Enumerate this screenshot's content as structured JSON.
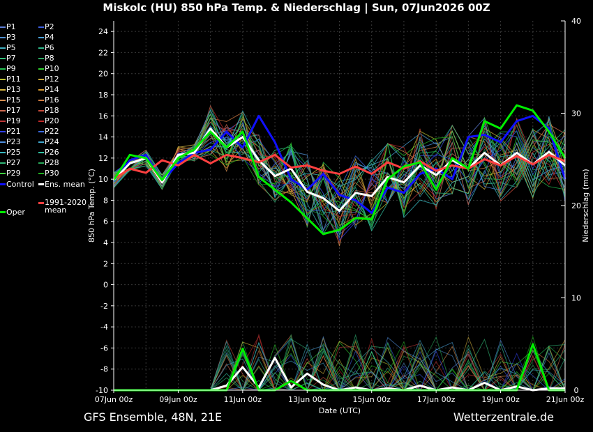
{
  "title": "Miskolc  (HU)  850 hPa Temp. & Niederschlag | Sun, 07Jun2026 00Z",
  "footer": {
    "left": "GFS Ensemble, 48N, 21E",
    "right": "Wetterzentrale.de"
  },
  "legend": [
    {
      "label": "P1",
      "color": "#5f7fd8"
    },
    {
      "label": "P2",
      "color": "#3b5fe0"
    },
    {
      "label": "P3",
      "color": "#4f8fd0"
    },
    {
      "label": "P4",
      "color": "#4aa0d8"
    },
    {
      "label": "P5",
      "color": "#3fb0c0"
    },
    {
      "label": "P6",
      "color": "#2fb88a"
    },
    {
      "label": "P7",
      "color": "#32c07a"
    },
    {
      "label": "P8",
      "color": "#2aa860"
    },
    {
      "label": "P9",
      "color": "#22c050"
    },
    {
      "label": "P10",
      "color": "#2ed02e"
    },
    {
      "label": "P11",
      "color": "#b8c030"
    },
    {
      "label": "P12",
      "color": "#c8a838"
    },
    {
      "label": "P13",
      "color": "#d8b840"
    },
    {
      "label": "P14",
      "color": "#d89a30"
    },
    {
      "label": "P15",
      "color": "#d89050"
    },
    {
      "label": "P16",
      "color": "#d07a40"
    },
    {
      "label": "P17",
      "color": "#d06a50"
    },
    {
      "label": "P18",
      "color": "#c84a3a"
    },
    {
      "label": "P19",
      "color": "#c03838"
    },
    {
      "label": "P20",
      "color": "#c02a2a"
    },
    {
      "label": "P21",
      "color": "#3040e8"
    },
    {
      "label": "P22",
      "color": "#3a6ae0"
    },
    {
      "label": "P23",
      "color": "#5090e0"
    },
    {
      "label": "P24",
      "color": "#40a8d0"
    },
    {
      "label": "P25",
      "color": "#38b8c0"
    },
    {
      "label": "P26",
      "color": "#30c0a0"
    },
    {
      "label": "P27",
      "color": "#30b878"
    },
    {
      "label": "P28",
      "color": "#28a858"
    },
    {
      "label": "P29",
      "color": "#40d040"
    },
    {
      "label": "P30",
      "color": "#20b020"
    },
    {
      "label": "Control",
      "color": "#1010ff"
    },
    {
      "label": "Ens. mean",
      "color": "#ffffff"
    },
    {
      "label": "1991-2020 mean",
      "color": "#ff4040"
    },
    {
      "label": "Oper",
      "color": "#00ee00"
    }
  ],
  "chart_data": {
    "type": "line",
    "xlabel": "Date (UTC)",
    "ylabel": "850 hPa Temp. (°C)",
    "y2label": "Niederschlag (mm)",
    "ylim": [
      -10,
      25
    ],
    "y2lim": [
      0,
      40
    ],
    "yticks": [
      -10,
      -8,
      -6,
      -4,
      -2,
      0,
      2,
      4,
      6,
      8,
      10,
      12,
      14,
      16,
      18,
      20,
      22,
      24
    ],
    "y2ticks": [
      0,
      10,
      20,
      30,
      40
    ],
    "xticks": [
      "07Jun 00z",
      "09Jun 00z",
      "11Jun 00z",
      "13Jun 00z",
      "15Jun 00z",
      "17Jun 00z",
      "19Jun 00z",
      "21Jun 00z"
    ],
    "x_hours": [
      0,
      12,
      24,
      36,
      48,
      60,
      72,
      84,
      96,
      108,
      120,
      132,
      144,
      156,
      168,
      180,
      192,
      204,
      216,
      228,
      240,
      252,
      264,
      276,
      288,
      300,
      312,
      324,
      336
    ],
    "grid": true,
    "series": [
      {
        "name": "Control",
        "color": "#1010ff",
        "width": 3,
        "values": [
          9.8,
          11.8,
          12.3,
          9.8,
          11.5,
          12.5,
          12.8,
          14.5,
          13.0,
          16.0,
          13.5,
          10.0,
          9.0,
          10.5,
          8.5,
          8.0,
          6.8,
          9.2,
          8.7,
          10.5,
          11.0,
          10.0,
          14.0,
          14.2,
          13.5,
          15.5,
          16.0,
          14.8,
          10.0
        ]
      },
      {
        "name": "Ens. mean",
        "color": "#ffffff",
        "width": 3,
        "values": [
          9.9,
          11.5,
          12.0,
          9.7,
          12.3,
          12.5,
          14.8,
          13.0,
          14.0,
          11.8,
          10.3,
          11.0,
          8.8,
          8.2,
          7.0,
          8.7,
          8.4,
          10.2,
          9.7,
          11.3,
          10.4,
          11.8,
          11.0,
          12.5,
          11.3,
          12.5,
          11.4,
          12.6,
          11.3
        ]
      },
      {
        "name": "1991-2020 mean",
        "color": "#ff4040",
        "width": 3,
        "values": [
          10.0,
          11.0,
          10.6,
          11.8,
          11.3,
          12.3,
          11.5,
          12.3,
          12.0,
          11.6,
          12.3,
          11.1,
          11.3,
          10.8,
          10.5,
          11.2,
          10.5,
          11.6,
          11.0,
          11.7,
          10.8,
          11.3,
          11.0,
          11.9,
          11.3,
          12.2,
          11.4,
          12.3,
          11.7
        ]
      },
      {
        "name": "Oper",
        "color": "#00ee00",
        "width": 3,
        "values": [
          9.9,
          12.3,
          12.0,
          9.9,
          12.0,
          12.8,
          14.5,
          13.0,
          14.5,
          10.2,
          9.0,
          7.8,
          6.3,
          4.8,
          5.2,
          6.3,
          6.2,
          10.0,
          11.2,
          11.6,
          9.0,
          12.0,
          11.0,
          15.5,
          14.8,
          17.0,
          16.5,
          14.5,
          12.0
        ]
      }
    ],
    "precip_series": [
      {
        "name": "Ens. mean",
        "color": "#ffffff",
        "values": [
          0,
          0,
          0,
          0,
          0,
          0,
          0,
          0.5,
          2.5,
          0.3,
          3.5,
          0.3,
          1.8,
          0.6,
          0,
          0.3,
          0,
          0.2,
          0,
          0.5,
          0,
          0.3,
          0,
          0.8,
          0,
          0.4,
          0,
          0.2,
          0.2
        ]
      },
      {
        "name": "Oper",
        "color": "#00ee00",
        "values": [
          0,
          0,
          0,
          0,
          0,
          0,
          0,
          0,
          4.5,
          0,
          0,
          1.0,
          0,
          0,
          0,
          0,
          0,
          0,
          0,
          0,
          0,
          0,
          0,
          0,
          0,
          0,
          5.0,
          0,
          0
        ]
      }
    ]
  }
}
